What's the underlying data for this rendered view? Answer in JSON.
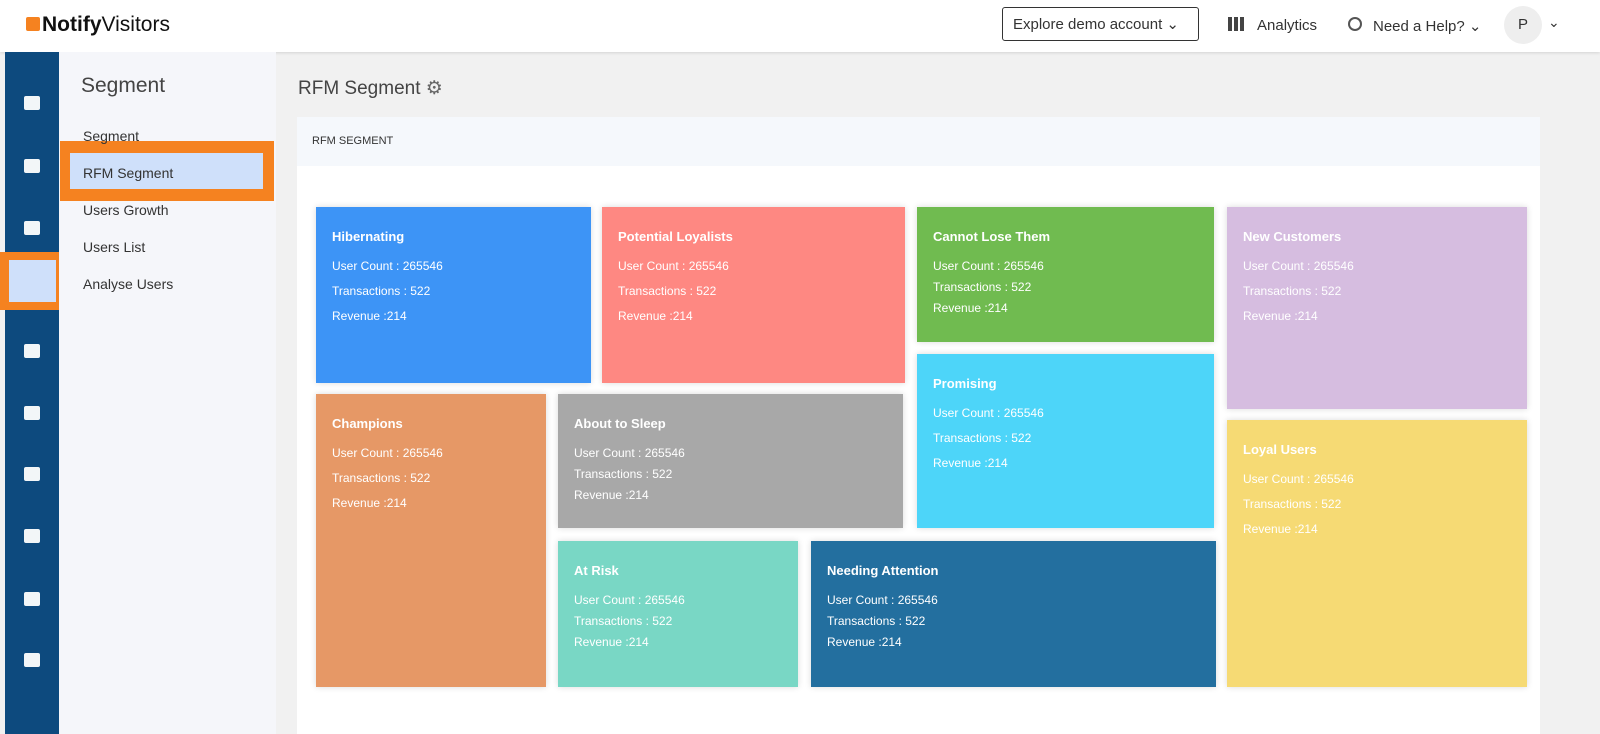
{
  "header": {
    "logo_bold": "Notify",
    "logo_light": "Visitors",
    "demo_button": "Explore demo account",
    "analytics": "Analytics",
    "help": "Need a Help?",
    "avatar": "P"
  },
  "nav": {
    "title": "Segment",
    "items": [
      "Segment",
      "RFM Segment",
      "Users Growth",
      "Users List",
      "Analyse Users"
    ],
    "active": 1
  },
  "main": {
    "title": "RFM Segment",
    "panel_title": "RFM SEGMENT"
  },
  "tiles": [
    {
      "name": "Hibernating",
      "user_count": "User Count : 265546",
      "transactions": "Transactions : 522",
      "revenue": "Revenue :214",
      "color": "#3d94f6"
    },
    {
      "name": "Potential Loyalists",
      "user_count": "User Count : 265546",
      "transactions": "Transactions : 522",
      "revenue": "Revenue :214",
      "color": "#fe8882"
    },
    {
      "name": "Cannot Lose Them",
      "user_count": "User Count : 265546",
      "transactions": "Transactions : 522",
      "revenue": "Revenue :214",
      "color": "#70bb50"
    },
    {
      "name": "New Customers",
      "user_count": "User Count : 265546",
      "transactions": "Transactions : 522",
      "revenue": "Revenue :214",
      "color": "#d6bde0"
    },
    {
      "name": "Promising",
      "user_count": "User Count : 265546",
      "transactions": "Transactions : 522",
      "revenue": "Revenue :214",
      "color": "#4dd5f9"
    },
    {
      "name": "Loyal Users",
      "user_count": "User Count : 265546",
      "transactions": "Transactions : 522",
      "revenue": "Revenue :214",
      "color": "#f6da74"
    },
    {
      "name": "Champions",
      "user_count": "User Count : 265546",
      "transactions": "Transactions : 522",
      "revenue": "Revenue :214",
      "color": "#e69866"
    },
    {
      "name": "About to Sleep",
      "user_count": "User Count : 265546",
      "transactions": "Transactions : 522",
      "revenue": "Revenue :214",
      "color": "#a8a8a8"
    },
    {
      "name": "At Risk",
      "user_count": "User Count : 265546",
      "transactions": "Transactions : 522",
      "revenue": "Revenue :214",
      "color": "#79d7c5"
    },
    {
      "name": "Needing Attention",
      "user_count": "User Count : 265546",
      "transactions": "Transactions : 522",
      "revenue": "Revenue :214",
      "color": "#236f9f"
    }
  ]
}
